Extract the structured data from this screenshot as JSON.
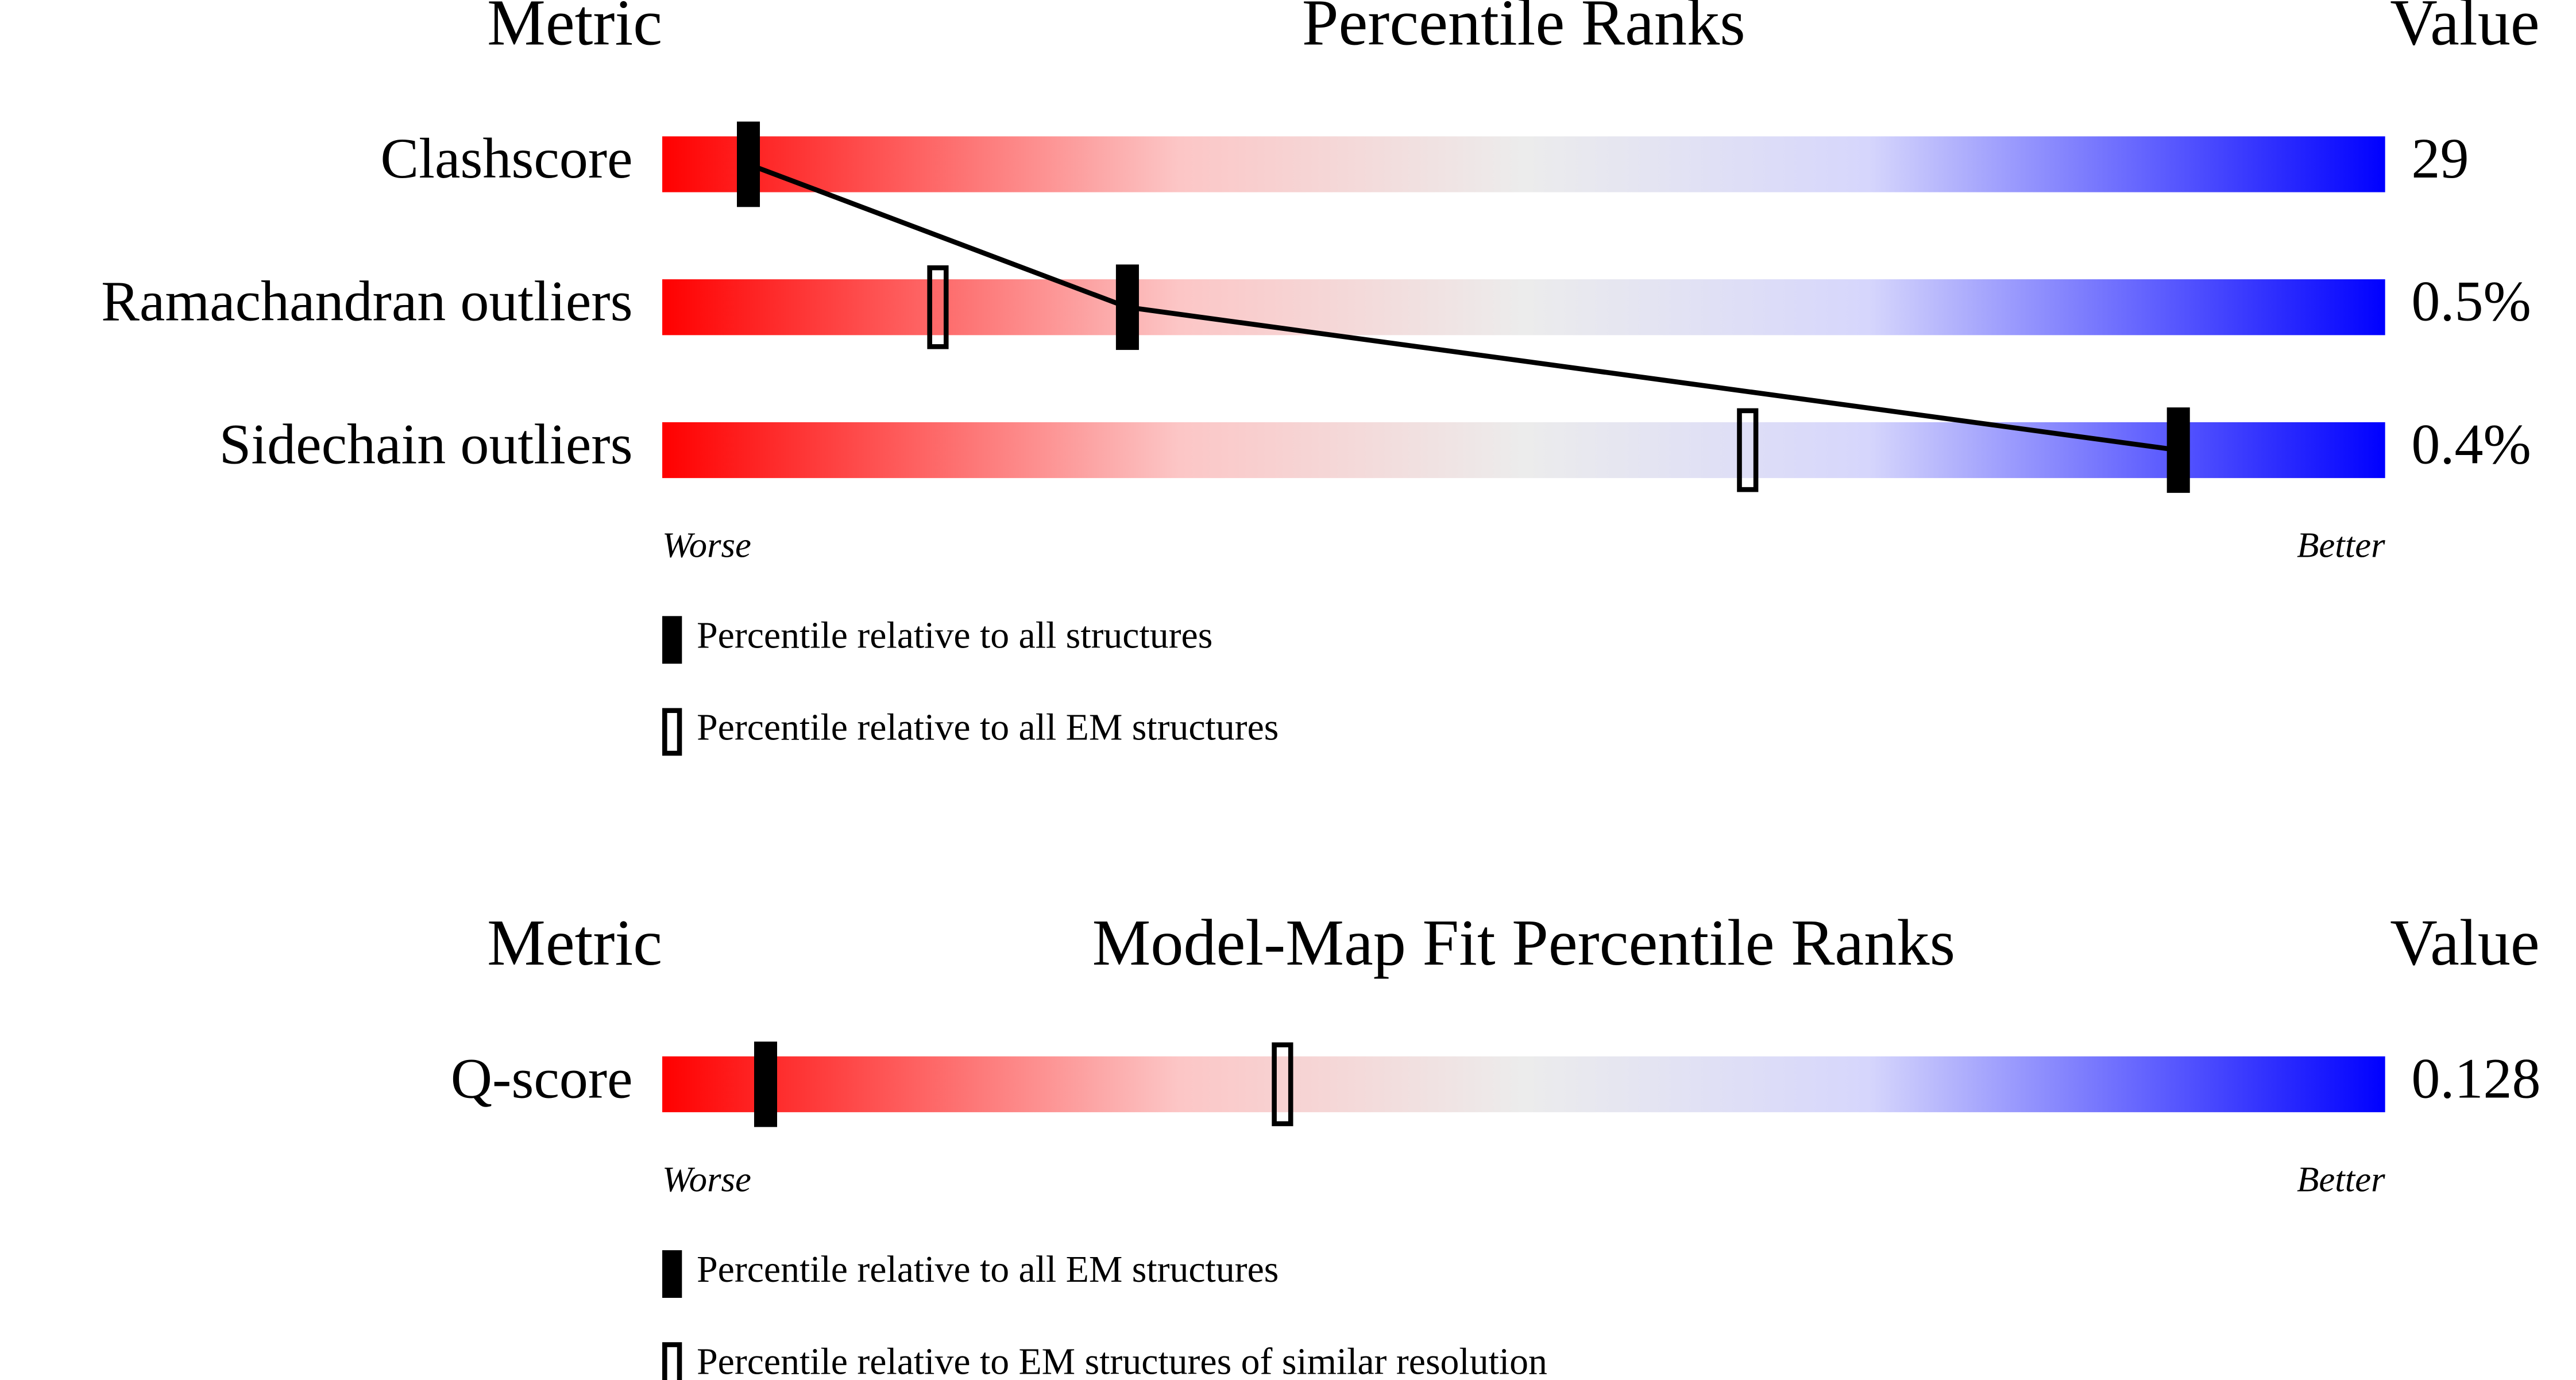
{
  "chart_data": [
    {
      "type": "percentile-slider",
      "metric_header": "Metric",
      "title": "Percentile Ranks",
      "value_header": "Value",
      "categories": [
        "Clashscore",
        "Ramachandran outliers",
        "Sidechain outliers"
      ],
      "value_column": [
        "29",
        "0.5%",
        "0.4%"
      ],
      "xlim": [
        0,
        100
      ],
      "worse_label": "Worse",
      "better_label": "Better",
      "series": [
        {
          "name": "Percentile relative to all structures",
          "style": "filled",
          "color": "#000000",
          "values": [
            5,
            27,
            88
          ]
        },
        {
          "name": "Percentile relative to all EM structures",
          "style": "hollow",
          "color": "#000000",
          "values": [
            null,
            16,
            63
          ]
        }
      ]
    },
    {
      "type": "percentile-slider",
      "metric_header": "Metric",
      "title": "Model-Map Fit Percentile Ranks",
      "value_header": "Value",
      "categories": [
        "Q-score"
      ],
      "value_column": [
        "0.128"
      ],
      "xlim": [
        0,
        100
      ],
      "worse_label": "Worse",
      "better_label": "Better",
      "series": [
        {
          "name": "Percentile relative to all EM structures",
          "style": "filled",
          "color": "#000000",
          "values": [
            6
          ]
        },
        {
          "name": "Percentile relative to EM structures of similar resolution",
          "style": "hollow",
          "color": "#000000",
          "values": [
            36
          ]
        }
      ]
    }
  ]
}
